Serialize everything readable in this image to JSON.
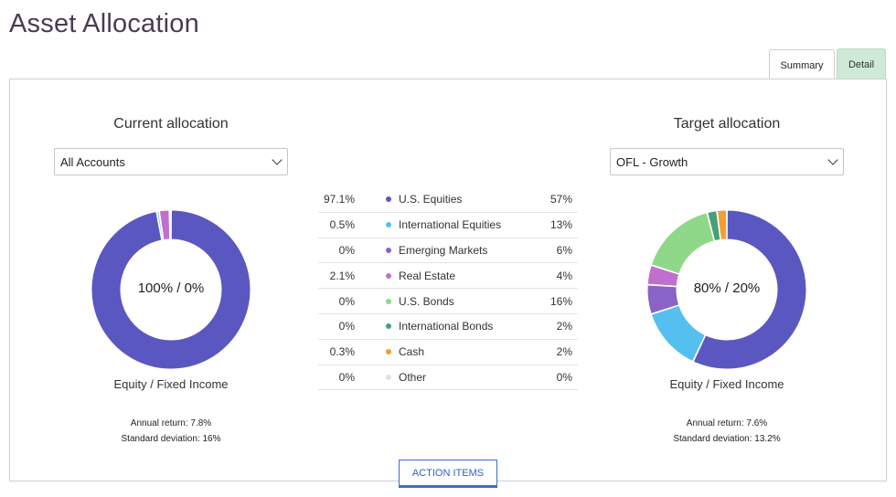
{
  "title": "Asset Allocation",
  "tabs": [
    {
      "label": "Summary",
      "active": true
    },
    {
      "label": "Detail",
      "active": false
    }
  ],
  "current": {
    "heading": "Current allocation",
    "select_value": "All Accounts",
    "center_label": "100% / 0%",
    "caption": "Equity / Fixed Income",
    "annual_return": "Annual return: 7.8%",
    "std_dev": "Standard deviation: 16%"
  },
  "target": {
    "heading": "Target allocation",
    "select_value": "OFL - Growth",
    "center_label": "80% / 20%",
    "caption": "Equity / Fixed Income",
    "annual_return": "Annual return: 7.6%",
    "std_dev": "Standard deviation: 13.2%"
  },
  "legend": [
    {
      "current": "97.1%",
      "name": "U.S. Equities",
      "target": "57%",
      "color": "#5b57c0",
      "cur_val": 97.1,
      "tgt_val": 57
    },
    {
      "current": "0.5%",
      "name": "International Equities",
      "target": "13%",
      "color": "#55c0ef",
      "cur_val": 0.5,
      "tgt_val": 13
    },
    {
      "current": "0%",
      "name": "Emerging Markets",
      "target": "6%",
      "color": "#8a63c6",
      "cur_val": 0,
      "tgt_val": 6
    },
    {
      "current": "2.1%",
      "name": "Real Estate",
      "target": "4%",
      "color": "#c06fcf",
      "cur_val": 2.1,
      "tgt_val": 4
    },
    {
      "current": "0%",
      "name": "U.S. Bonds",
      "target": "16%",
      "color": "#8fd88a",
      "cur_val": 0,
      "tgt_val": 16
    },
    {
      "current": "0%",
      "name": "International Bonds",
      "target": "2%",
      "color": "#4a9f78",
      "cur_val": 0,
      "tgt_val": 2
    },
    {
      "current": "0.3%",
      "name": "Cash",
      "target": "2%",
      "color": "#f0a030",
      "cur_val": 0.3,
      "tgt_val": 2
    },
    {
      "current": "0%",
      "name": "Other",
      "target": "0%",
      "color": "#e0e0e0",
      "cur_val": 0,
      "tgt_val": 0
    }
  ],
  "action_button": "ACTION ITEMS"
}
